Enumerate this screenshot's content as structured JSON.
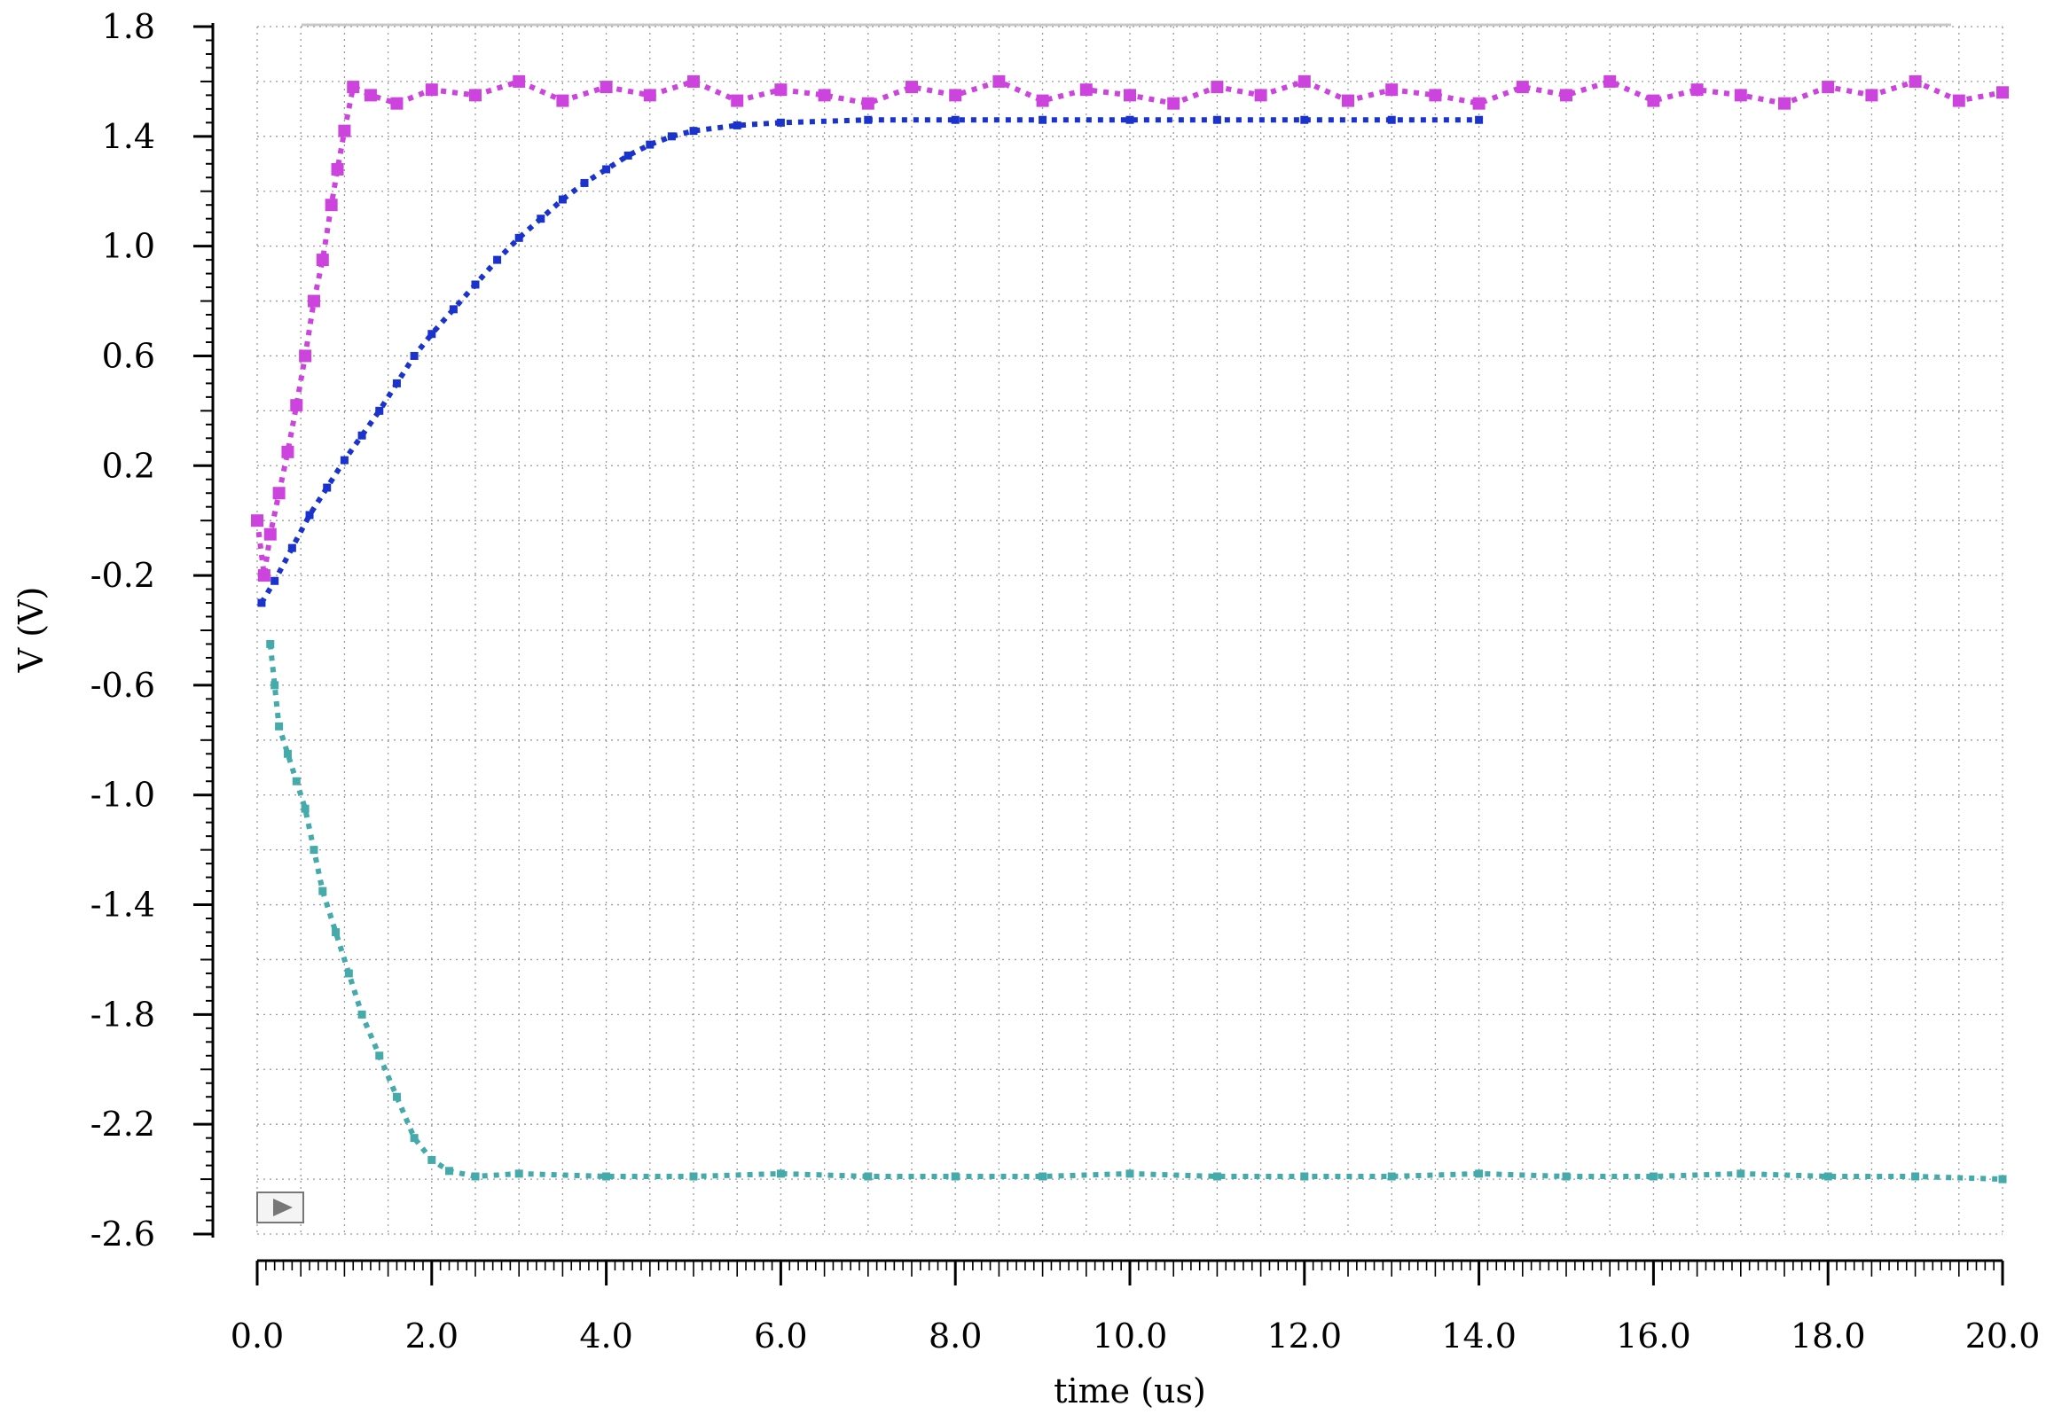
{
  "chart_data": {
    "type": "scatter",
    "title": "",
    "xlabel": "time (us)",
    "ylabel": "V (V)",
    "xlim": [
      0,
      20
    ],
    "ylim": [
      -2.6,
      1.8
    ],
    "x_ticks": [
      "0.0",
      "2.0",
      "4.0",
      "6.0",
      "8.0",
      "10.0",
      "12.0",
      "14.0",
      "16.0",
      "18.0",
      "20.0"
    ],
    "y_ticks": [
      "1.8",
      "1.4",
      "1.0",
      "0.6",
      "0.2",
      "-0.2",
      "-0.6",
      "-1.0",
      "-1.4",
      "-1.8",
      "-2.2",
      "-2.6"
    ],
    "grid": true,
    "series": [
      {
        "color": "#cc44dd",
        "marker": "square",
        "points": [
          [
            0.0,
            0.0
          ],
          [
            0.08,
            -0.2
          ],
          [
            0.15,
            -0.05
          ],
          [
            0.25,
            0.1
          ],
          [
            0.35,
            0.25
          ],
          [
            0.45,
            0.42
          ],
          [
            0.55,
            0.6
          ],
          [
            0.65,
            0.8
          ],
          [
            0.75,
            0.95
          ],
          [
            0.85,
            1.15
          ],
          [
            0.92,
            1.28
          ],
          [
            1.0,
            1.42
          ],
          [
            1.1,
            1.58
          ],
          [
            1.3,
            1.55
          ],
          [
            1.6,
            1.52
          ],
          [
            2.0,
            1.57
          ],
          [
            2.5,
            1.55
          ],
          [
            3.0,
            1.6
          ],
          [
            3.5,
            1.53
          ],
          [
            4.0,
            1.58
          ],
          [
            4.5,
            1.55
          ],
          [
            5.0,
            1.6
          ],
          [
            5.5,
            1.53
          ],
          [
            6.0,
            1.57
          ],
          [
            6.5,
            1.55
          ],
          [
            7.0,
            1.52
          ],
          [
            7.5,
            1.58
          ],
          [
            8.0,
            1.55
          ],
          [
            8.5,
            1.6
          ],
          [
            9.0,
            1.53
          ],
          [
            9.5,
            1.57
          ],
          [
            10.0,
            1.55
          ],
          [
            10.5,
            1.52
          ],
          [
            11.0,
            1.58
          ],
          [
            11.5,
            1.55
          ],
          [
            12.0,
            1.6
          ],
          [
            12.5,
            1.53
          ],
          [
            13.0,
            1.57
          ],
          [
            13.5,
            1.55
          ],
          [
            14.0,
            1.52
          ],
          [
            14.5,
            1.58
          ],
          [
            15.0,
            1.55
          ],
          [
            15.5,
            1.6
          ],
          [
            16.0,
            1.53
          ],
          [
            16.5,
            1.57
          ],
          [
            17.0,
            1.55
          ],
          [
            17.5,
            1.52
          ],
          [
            18.0,
            1.58
          ],
          [
            18.5,
            1.55
          ],
          [
            19.0,
            1.6
          ],
          [
            19.5,
            1.53
          ],
          [
            20.0,
            1.56
          ]
        ]
      },
      {
        "color": "#1a33cc",
        "marker": "square",
        "points": [
          [
            0.05,
            -0.3
          ],
          [
            0.2,
            -0.22
          ],
          [
            0.4,
            -0.1
          ],
          [
            0.6,
            0.02
          ],
          [
            0.8,
            0.12
          ],
          [
            1.0,
            0.22
          ],
          [
            1.2,
            0.31
          ],
          [
            1.4,
            0.4
          ],
          [
            1.6,
            0.5
          ],
          [
            1.8,
            0.6
          ],
          [
            2.0,
            0.68
          ],
          [
            2.25,
            0.77
          ],
          [
            2.5,
            0.86
          ],
          [
            2.75,
            0.95
          ],
          [
            3.0,
            1.03
          ],
          [
            3.25,
            1.1
          ],
          [
            3.5,
            1.17
          ],
          [
            3.75,
            1.23
          ],
          [
            4.0,
            1.28
          ],
          [
            4.25,
            1.33
          ],
          [
            4.5,
            1.37
          ],
          [
            4.75,
            1.4
          ],
          [
            5.0,
            1.42
          ],
          [
            5.5,
            1.44
          ],
          [
            6.0,
            1.45
          ],
          [
            7.0,
            1.46
          ],
          [
            8.0,
            1.46
          ],
          [
            9.0,
            1.46
          ],
          [
            10.0,
            1.46
          ],
          [
            11.0,
            1.46
          ],
          [
            12.0,
            1.46
          ],
          [
            13.0,
            1.46
          ],
          [
            14.0,
            1.46
          ]
        ]
      },
      {
        "color": "#44aaaa",
        "marker": "square",
        "points": [
          [
            0.15,
            -0.45
          ],
          [
            0.2,
            -0.6
          ],
          [
            0.25,
            -0.75
          ],
          [
            0.35,
            -0.85
          ],
          [
            0.45,
            -0.95
          ],
          [
            0.55,
            -1.05
          ],
          [
            0.65,
            -1.2
          ],
          [
            0.75,
            -1.35
          ],
          [
            0.9,
            -1.5
          ],
          [
            1.05,
            -1.65
          ],
          [
            1.2,
            -1.8
          ],
          [
            1.4,
            -1.95
          ],
          [
            1.6,
            -2.1
          ],
          [
            1.8,
            -2.25
          ],
          [
            2.0,
            -2.33
          ],
          [
            2.2,
            -2.37
          ],
          [
            2.5,
            -2.39
          ],
          [
            3.0,
            -2.38
          ],
          [
            4.0,
            -2.39
          ],
          [
            5.0,
            -2.39
          ],
          [
            6.0,
            -2.38
          ],
          [
            7.0,
            -2.39
          ],
          [
            8.0,
            -2.39
          ],
          [
            9.0,
            -2.39
          ],
          [
            10.0,
            -2.38
          ],
          [
            11.0,
            -2.39
          ],
          [
            12.0,
            -2.39
          ],
          [
            13.0,
            -2.39
          ],
          [
            14.0,
            -2.38
          ],
          [
            15.0,
            -2.39
          ],
          [
            16.0,
            -2.39
          ],
          [
            17.0,
            -2.38
          ],
          [
            18.0,
            -2.39
          ],
          [
            19.0,
            -2.39
          ],
          [
            20.0,
            -2.4
          ]
        ]
      }
    ]
  }
}
